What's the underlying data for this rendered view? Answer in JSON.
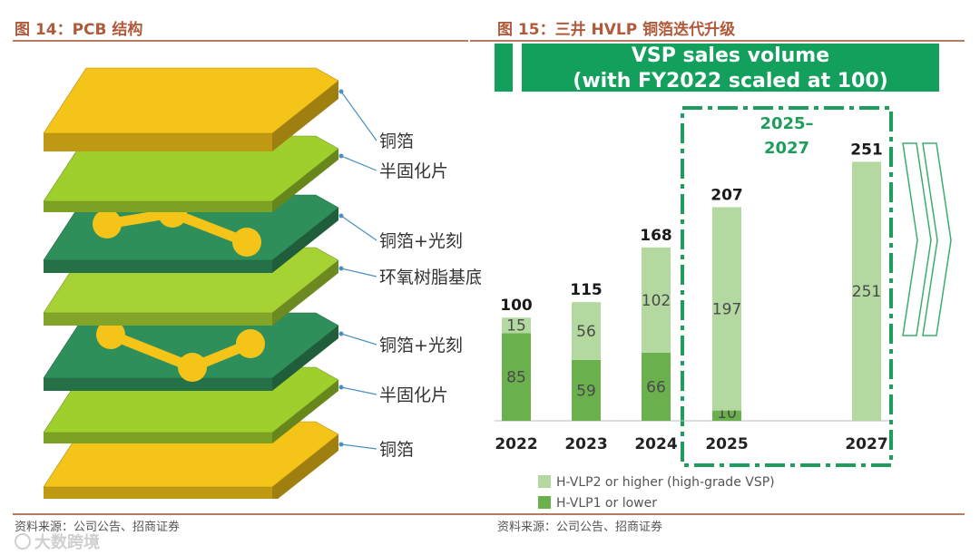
{
  "left_figure": {
    "title": "图 14：PCB 结构",
    "layers": [
      "铜箔",
      "半固化片",
      "铜箔+光刻",
      "环氧树脂基底",
      "铜箔+光刻",
      "半固化片",
      "铜箔"
    ],
    "source": "资料来源：公司公告、招商证券",
    "colors": {
      "copper": "#f5c419",
      "prepreg": "#9fcf2d",
      "etched": "#2f8f5b",
      "substrate": "#a6d234"
    }
  },
  "right_figure": {
    "title": "图 15：三井 HVLP 铜箔迭代升级",
    "source": "资料来源：公司公告、招商证券"
  },
  "watermark": "大数跨境",
  "chart_data": {
    "type": "bar",
    "title_line1": "VSP sales volume",
    "title_line2": "(with FY2022 scaled at 100)",
    "categories": [
      "2022",
      "2023",
      "2024",
      "2025",
      "2027"
    ],
    "series": [
      {
        "name": "H-VLP1 or lower",
        "values": [
          85,
          59,
          66,
          10,
          0
        ],
        "color": "#6ab04c"
      },
      {
        "name": "H-VLP2  or higher (high-grade VSP)",
        "values": [
          15,
          56,
          102,
          197,
          251
        ],
        "color": "#b3d9a0"
      }
    ],
    "totals": [
      100,
      115,
      168,
      207,
      251
    ],
    "total_highlight_color": "#e8202a",
    "forecast_label_line1": "2025–",
    "forecast_label_line2": "2027",
    "ylim": [
      0,
      290
    ],
    "colors": {
      "title_band": "#13a05c",
      "forecast_box": "#1e9d5c"
    }
  }
}
